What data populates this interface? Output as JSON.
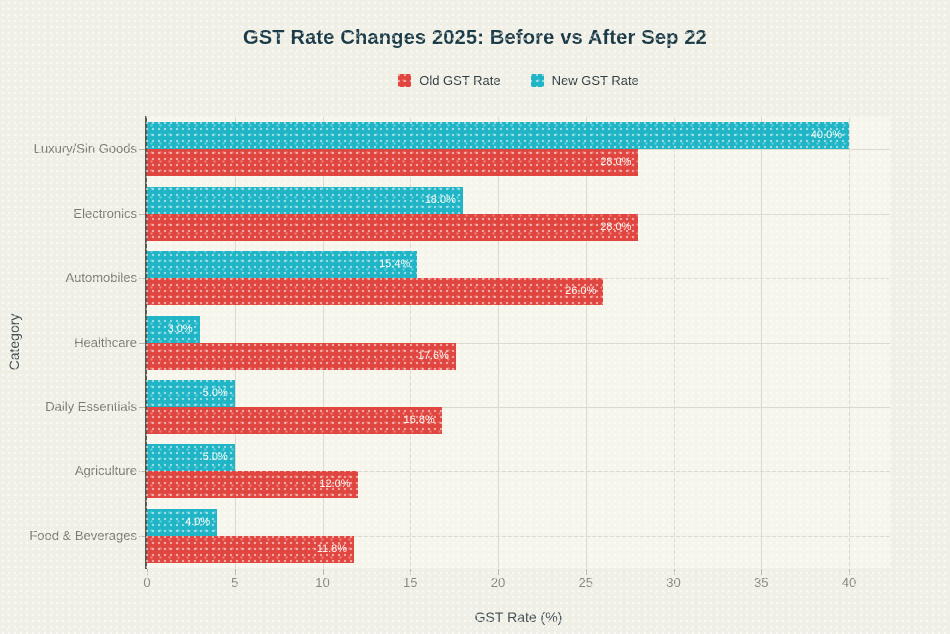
{
  "title": "GST Rate Changes 2025: Before vs After Sep 22",
  "axes": {
    "xlabel": "GST Rate (%)",
    "ylabel": "Category"
  },
  "legend": {
    "position": "top-center",
    "items": [
      {
        "label": "Old GST Rate",
        "series_key": "old"
      },
      {
        "label": "New GST Rate",
        "series_key": "new"
      }
    ]
  },
  "chart_data": {
    "type": "bar",
    "orientation": "horizontal",
    "title": "GST Rate Changes 2025: Before vs After Sep 22",
    "xlabel": "GST Rate (%)",
    "ylabel": "Category",
    "categories": [
      "Luxury/Sin Goods",
      "Electronics",
      "Automobiles",
      "Healthcare",
      "Daily Essentials",
      "Agriculture",
      "Food & Beverages"
    ],
    "series": [
      {
        "name": "Old GST Rate",
        "key": "old",
        "color": "#e0453f",
        "values": [
          28.0,
          28.0,
          26.0,
          17.6,
          16.8,
          12.0,
          11.8
        ],
        "value_labels": [
          "28.0%",
          "28.0%",
          "26.0%",
          "17.6%",
          "16.8%",
          "12.0%",
          "11.8%"
        ]
      },
      {
        "name": "New GST Rate",
        "key": "new",
        "color": "#1fb5c6",
        "values": [
          40.0,
          18.0,
          15.4,
          3.0,
          5.0,
          5.0,
          4.0
        ],
        "value_labels": [
          "40.0%",
          "18.0%",
          "15.4%",
          "3.0%",
          "5.0%",
          "5.0%",
          "4.0%"
        ]
      }
    ],
    "bar_order_top_to_bottom": [
      "New GST Rate",
      "Old GST Rate"
    ],
    "xticks": [
      0,
      5,
      10,
      15,
      20,
      25,
      30,
      35,
      40
    ],
    "xtick_labels": [
      "0",
      "5",
      "10",
      "15",
      "20",
      "25",
      "30",
      "35",
      "40"
    ],
    "xlim": [
      0,
      42.3
    ],
    "grid": true,
    "legend_position": "top-center"
  },
  "colors": {
    "figure_bg": "#f0efe6",
    "plot_bg": "#f6f5ec",
    "old_series": "#e0453f",
    "new_series": "#1fb5c6",
    "gridline": "#dcd9cf",
    "spine": "#56554e",
    "title_text": "#1a3a47",
    "axis_title_text": "#3e4c52",
    "tick_label_text": "#87857c",
    "category_label_text": "#7b7970",
    "value_label_text": "#fdfcf7",
    "legend_text": "#2e3b41"
  }
}
